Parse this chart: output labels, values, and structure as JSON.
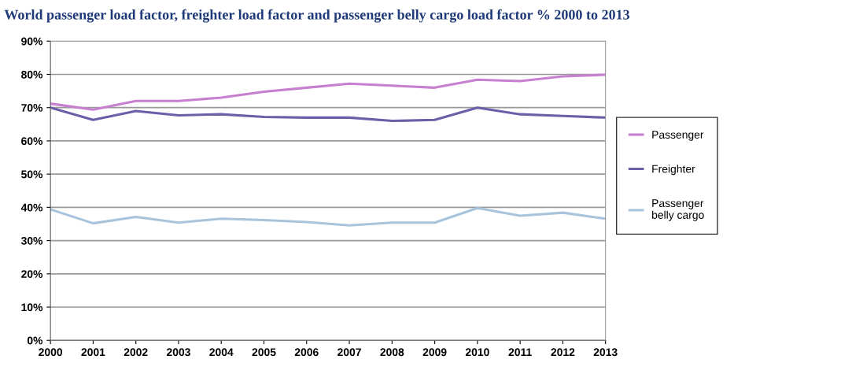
{
  "chart_data": {
    "type": "line",
    "title": "World passenger load factor, freighter load factor and passenger belly cargo load factor % 2000 to 2013",
    "categories": [
      "2000",
      "2001",
      "2002",
      "2003",
      "2004",
      "2005",
      "2006",
      "2007",
      "2008",
      "2009",
      "2010",
      "2011",
      "2012",
      "2013"
    ],
    "series": [
      {
        "name": "Passenger",
        "color": "#c77fcf",
        "values": [
          71.2,
          69.4,
          72,
          72,
          73,
          74.8,
          76,
          77.2,
          76.6,
          76,
          78.4,
          78,
          79.4,
          79.9
        ]
      },
      {
        "name": "Freighter",
        "color": "#6a5fa8",
        "values": [
          70,
          66.3,
          69,
          67.7,
          68,
          67.2,
          67,
          67,
          66,
          66.3,
          70,
          68,
          67.5,
          67
        ]
      },
      {
        "name": "Passenger belly cargo",
        "color": "#a8c4dc",
        "values": [
          39.4,
          35.2,
          37.1,
          35.4,
          36.6,
          36.2,
          35.6,
          34.6,
          35.4,
          35.4,
          39.8,
          37.5,
          38.4,
          36.6
        ]
      }
    ],
    "ylim": [
      0,
      90
    ],
    "yticks": [
      {
        "value": 0,
        "label": "0%"
      },
      {
        "value": 10,
        "label": "10%"
      },
      {
        "value": 20,
        "label": "20%"
      },
      {
        "value": 30,
        "label": "30%"
      },
      {
        "value": 40,
        "label": "40%"
      },
      {
        "value": 50,
        "label": "50%"
      },
      {
        "value": 60,
        "label": "60%"
      },
      {
        "value": 70,
        "label": "70%"
      },
      {
        "value": 80,
        "label": "80%"
      },
      {
        "value": 90,
        "label": "90%"
      }
    ],
    "grid": "y",
    "legend": "right",
    "marker": "none",
    "line_style": "solid"
  }
}
